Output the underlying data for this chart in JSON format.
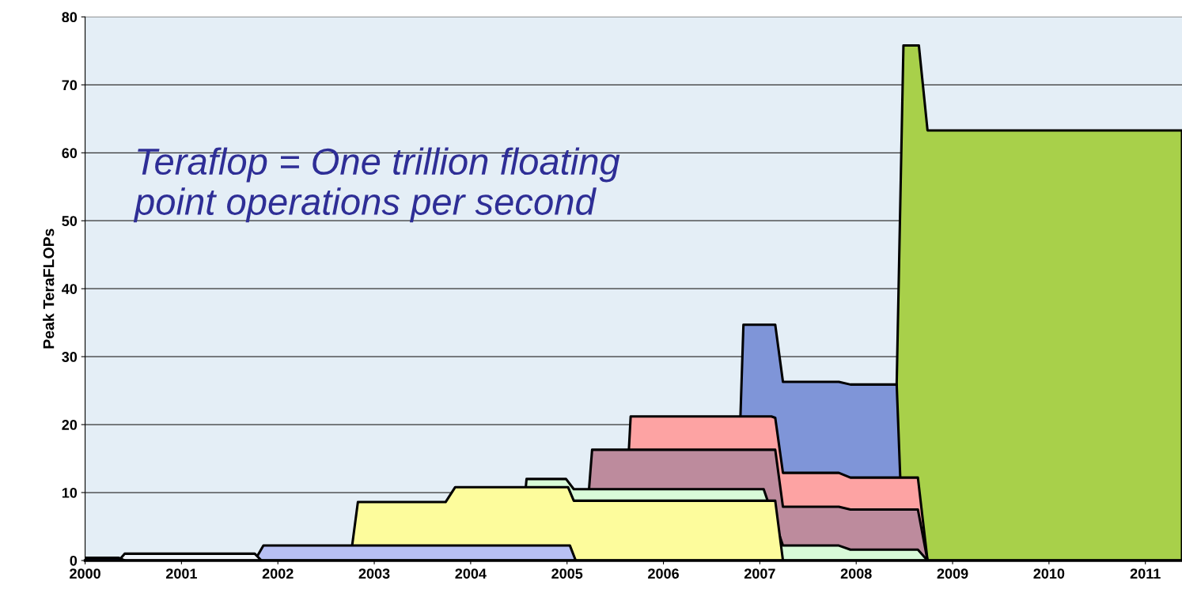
{
  "chart_data": {
    "type": "area",
    "ylabel": "Peak TeraFLOPs",
    "annotations": [
      "Teraflop = One trillion floating\npoint operations per second"
    ],
    "xlim": [
      2000,
      2011.38
    ],
    "xticks": [
      2000,
      2001,
      2002,
      2003,
      2004,
      2005,
      2006,
      2007,
      2008,
      2009,
      2010,
      2011
    ],
    "ylim": [
      0,
      80
    ],
    "yticks": [
      0,
      10,
      20,
      30,
      40,
      50,
      60,
      70,
      80
    ],
    "grid": "y",
    "series": [
      {
        "color": "#a8d04a",
        "x": [
          2008.33,
          2008.42,
          2008.49,
          2008.65,
          2008.74,
          2011.38
        ],
        "values": [
          0,
          26,
          75.8,
          75.8,
          63.3,
          63.3
        ]
      },
      {
        "color": "#7f95d8",
        "x": [
          2006.75,
          2006.83,
          2007.16,
          2007.24,
          2007.82,
          2007.94,
          2008.42,
          2008.49
        ],
        "values": [
          0,
          34.7,
          34.7,
          26.3,
          26.3,
          25.9,
          25.9,
          0
        ]
      },
      {
        "color": "#fda3a3",
        "x": [
          2005.58,
          2005.66,
          2007.12,
          2007.16,
          2007.24,
          2007.82,
          2007.94,
          2008.64,
          2008.74
        ],
        "values": [
          0,
          21.2,
          21.2,
          21,
          12.9,
          12.9,
          12.2,
          12.2,
          0
        ]
      },
      {
        "color": "#bd8b9d",
        "x": [
          2005.17,
          2005.26,
          2007.16,
          2007.24,
          2007.82,
          2007.94,
          2008.64,
          2008.74
        ],
        "values": [
          0,
          16.3,
          16.3,
          7.9,
          7.9,
          7.5,
          7.5,
          0
        ]
      },
      {
        "color": "#d8fad8",
        "x": [
          2004.5,
          2004.58,
          2004.99,
          2005.07,
          2007.04,
          2007.24,
          2007.82,
          2007.94,
          2008.64,
          2008.74
        ],
        "values": [
          0,
          12,
          12,
          10.5,
          10.5,
          2.2,
          2.2,
          1.6,
          1.6,
          0
        ]
      },
      {
        "color": "#fdfc9c",
        "x": [
          2002.75,
          2002.83,
          2003.74,
          2003.84,
          2005.01,
          2005.07,
          2007.16,
          2007.24
        ],
        "values": [
          0,
          8.6,
          8.6,
          10.8,
          10.8,
          8.8,
          8.8,
          0
        ]
      },
      {
        "color": "#b8c0f4",
        "x": [
          2001.76,
          2001.85,
          2005.03,
          2005.09
        ],
        "values": [
          0,
          2.2,
          2.2,
          0
        ]
      },
      {
        "color": "#f0f4fa",
        "x": [
          2000.35,
          2000.41,
          2001.76,
          2001.83
        ],
        "values": [
          0,
          1,
          1,
          0
        ]
      },
      {
        "color": "#20206a",
        "x": [
          2000,
          2000.35,
          2000.41
        ],
        "values": [
          0.4,
          0.4,
          0
        ]
      }
    ]
  }
}
